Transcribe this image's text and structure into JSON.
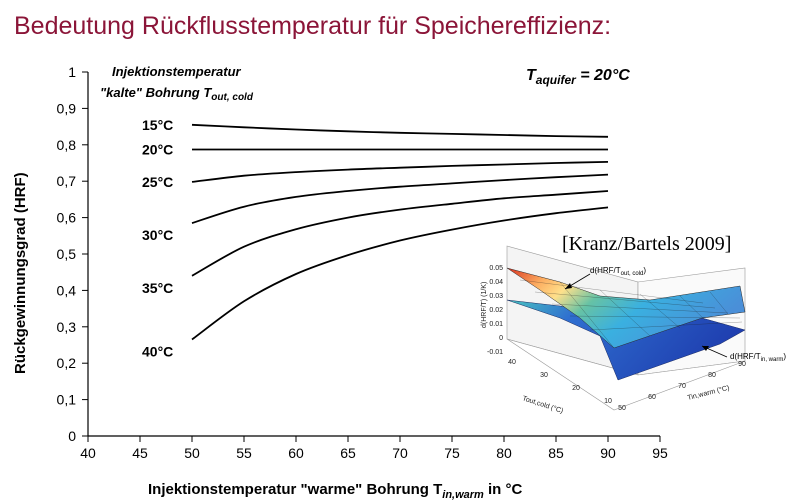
{
  "slide": {
    "title": "Bedeutung Rückflusstemperatur für Speichereffizienz:",
    "citation": "[Kranz/Bartels 2009]"
  },
  "chart_data": {
    "type": "line",
    "xlabel": "Injektionstemperatur \"warme\" Bohrung T",
    "xlabel_sub": "in,warm",
    "xlabel_suffix": " in °C",
    "ylabel": "Rückgewinnungsgrad (HRF)",
    "xlim": [
      40,
      95
    ],
    "ylim": [
      0,
      1
    ],
    "xticks": [
      "40",
      "45",
      "50",
      "55",
      "60",
      "65",
      "70",
      "75",
      "80",
      "85",
      "90",
      "95"
    ],
    "yticks": [
      "0",
      "0,1",
      "0,2",
      "0,3",
      "0,4",
      "0,5",
      "0,6",
      "0,7",
      "0,8",
      "0,9",
      "1"
    ],
    "legend_title_line1": "Injektionstemperatur",
    "legend_title_line2": "\"kalte\" Bohrung T",
    "legend_title_sub": "out, cold",
    "annotation_main": "T",
    "annotation_sub": "aquifer",
    "annotation_suffix": " = 20°C",
    "series": [
      {
        "name": "15°C",
        "x": [
          50,
          55,
          60,
          65,
          70,
          75,
          80,
          85,
          90
        ],
        "y": [
          0.855,
          0.848,
          0.842,
          0.837,
          0.833,
          0.83,
          0.827,
          0.824,
          0.822
        ]
      },
      {
        "name": "20°C",
        "x": [
          50,
          55,
          60,
          65,
          70,
          75,
          80,
          85,
          90
        ],
        "y": [
          0.787,
          0.787,
          0.787,
          0.787,
          0.787,
          0.787,
          0.787,
          0.787,
          0.787
        ]
      },
      {
        "name": "25°C",
        "x": [
          50,
          55,
          60,
          65,
          70,
          75,
          80,
          85,
          90
        ],
        "y": [
          0.698,
          0.715,
          0.725,
          0.732,
          0.737,
          0.742,
          0.746,
          0.75,
          0.753
        ]
      },
      {
        "name": "30°C",
        "x": [
          50,
          55,
          60,
          65,
          70,
          75,
          80,
          85,
          90
        ],
        "y": [
          0.585,
          0.63,
          0.657,
          0.673,
          0.685,
          0.694,
          0.703,
          0.711,
          0.718
        ]
      },
      {
        "name": "35°C",
        "x": [
          50,
          55,
          60,
          65,
          70,
          75,
          80,
          85,
          90
        ],
        "y": [
          0.44,
          0.52,
          0.568,
          0.6,
          0.622,
          0.638,
          0.653,
          0.663,
          0.673
        ]
      },
      {
        "name": "40°C",
        "x": [
          50,
          55,
          60,
          65,
          70,
          75,
          80,
          85,
          90
        ],
        "y": [
          0.265,
          0.37,
          0.445,
          0.497,
          0.537,
          0.567,
          0.592,
          0.612,
          0.628
        ]
      }
    ]
  },
  "inset": {
    "zticks": [
      "0.05",
      "0.04",
      "0.03",
      "0.02",
      "0.01",
      "0",
      "-0.01"
    ],
    "zlabel": "d(HRF/T) (1/K)",
    "label_cold": "d(HRF/T",
    "label_cold_sub": "out, cold",
    "label_cold_suffix": ")",
    "label_warm": "d(HRF/T",
    "label_warm_sub": "in, warm",
    "label_warm_suffix": ")",
    "xaxis_ticks": [
      "40",
      "30",
      "20",
      "10"
    ],
    "xaxis_label": "Tout,cold (°C)",
    "yaxis_ticks": [
      "50",
      "60",
      "70",
      "80",
      "90"
    ],
    "yaxis_label": "Tin,warm (°C)"
  }
}
